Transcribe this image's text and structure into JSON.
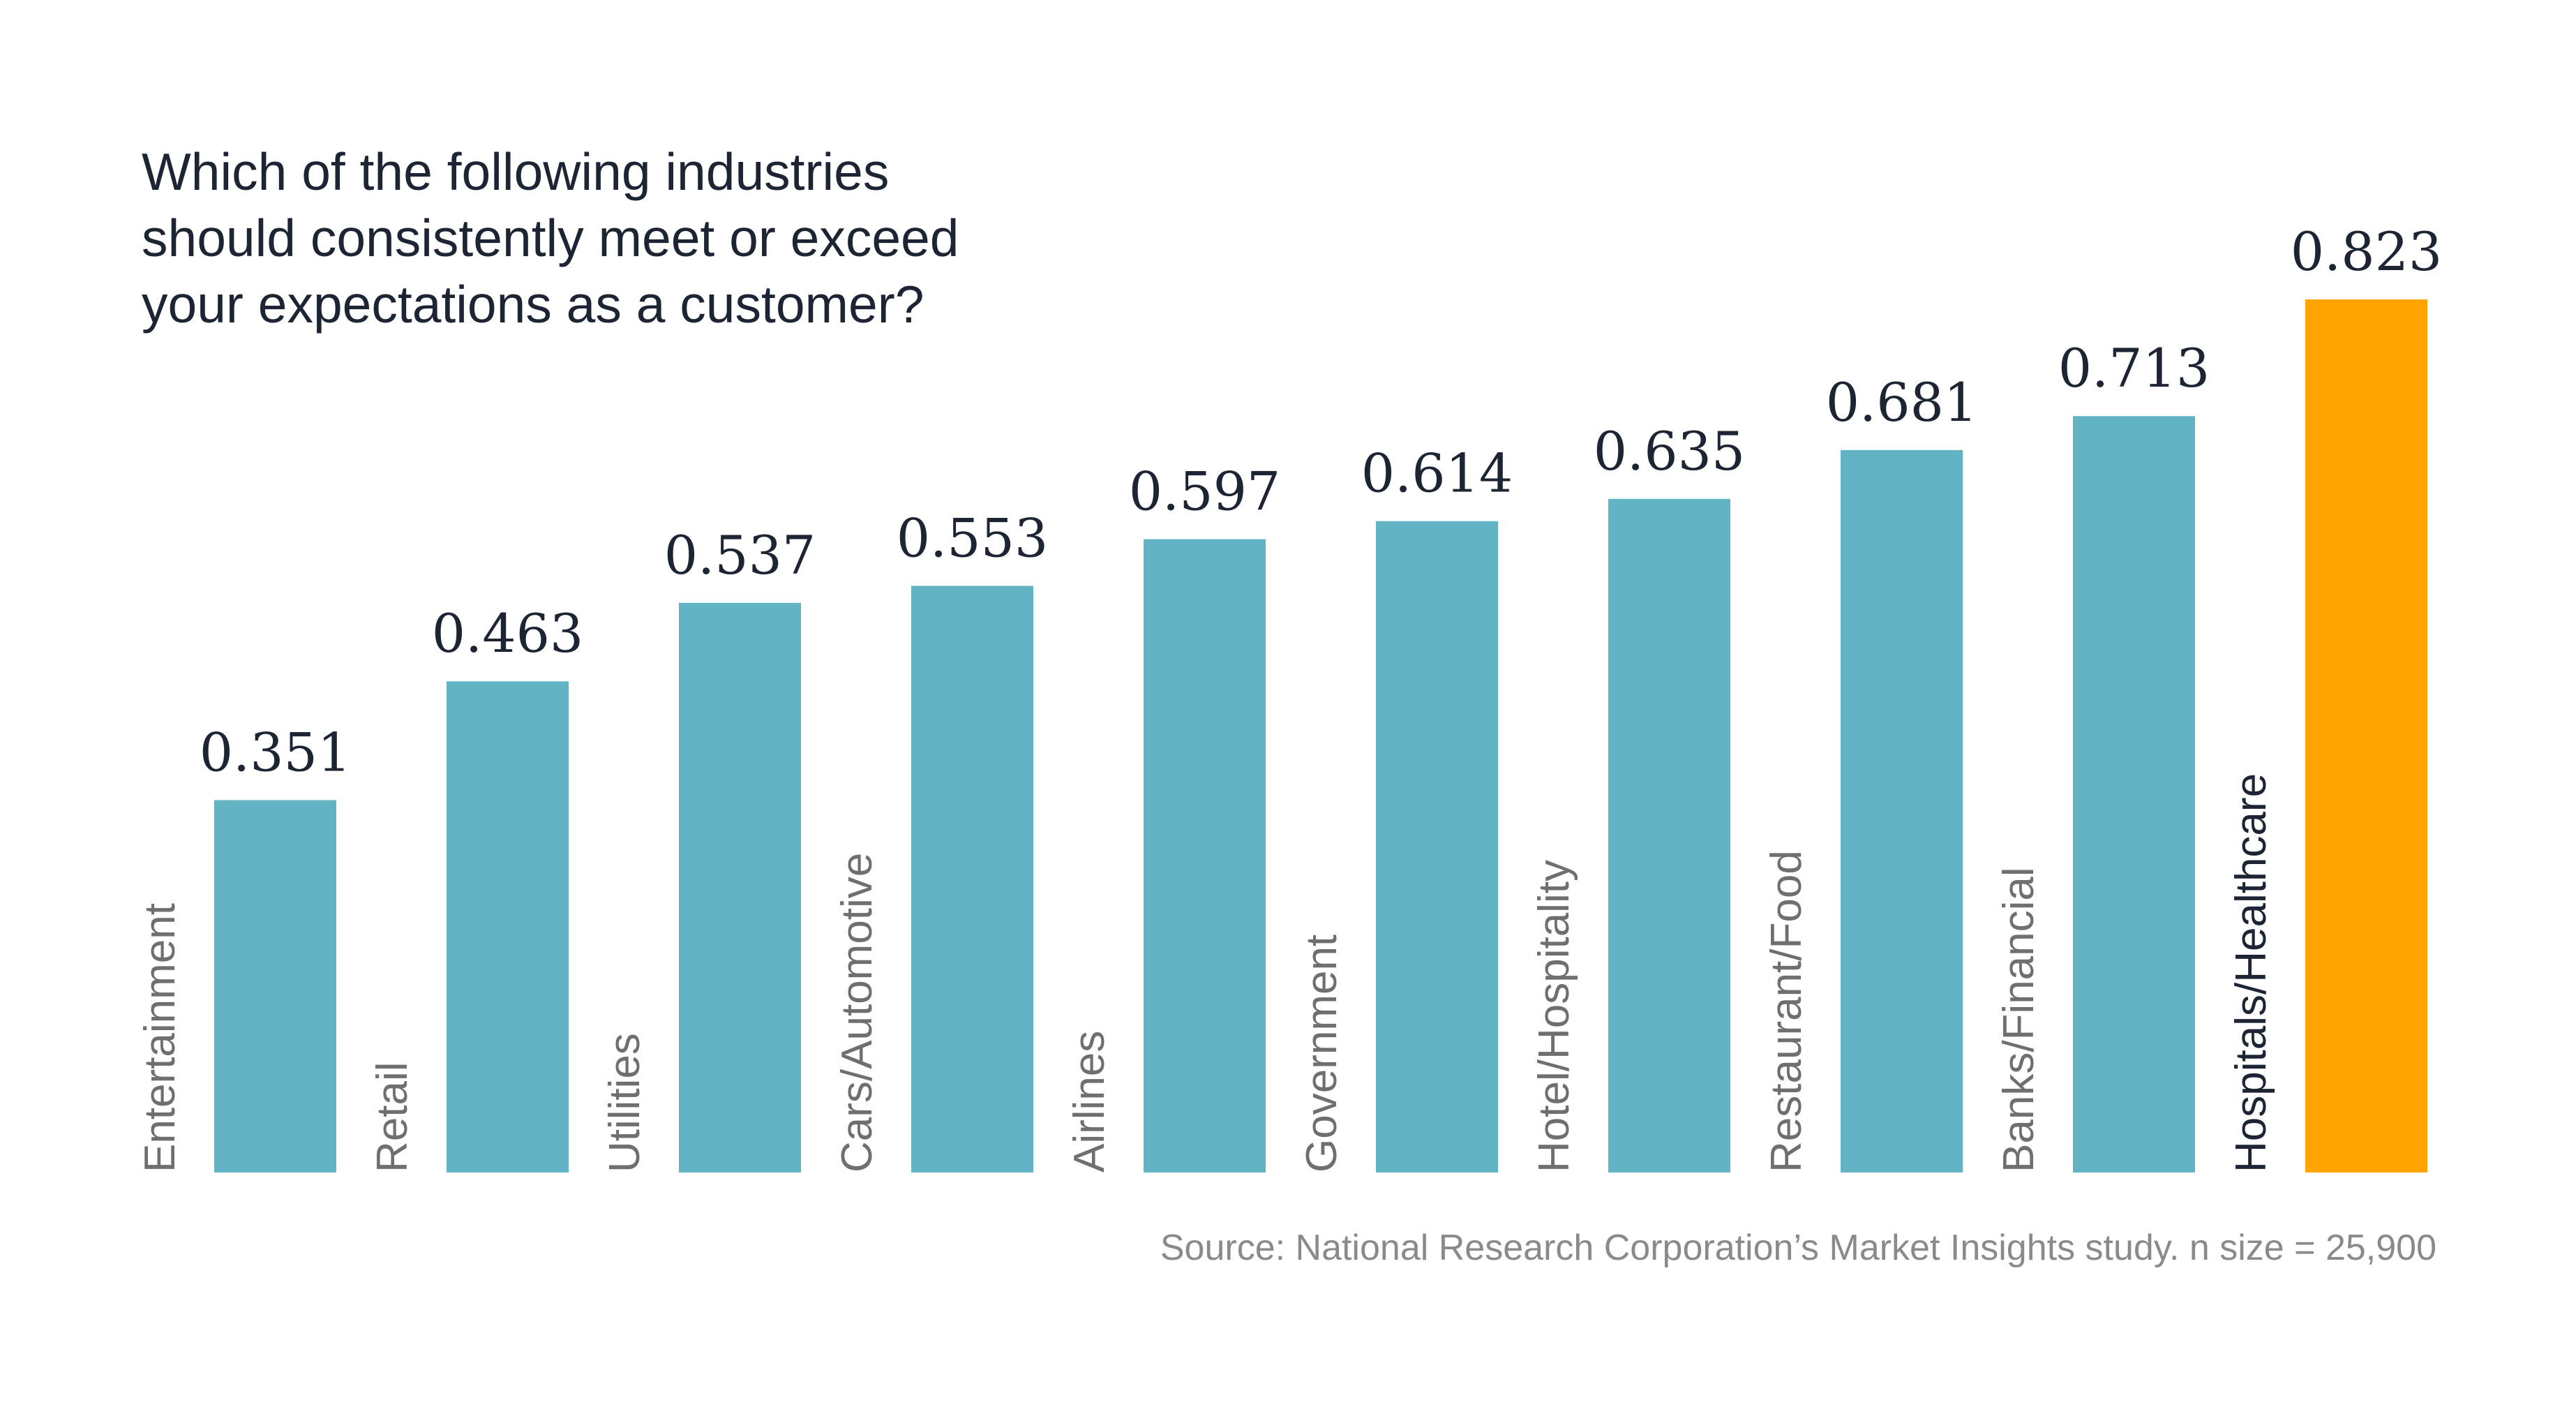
{
  "title_lines": [
    "Which of the following industries",
    "should consistently meet or exceed",
    "your expectations as a customer?"
  ],
  "source": "Source: National Research Corporation’s Market Insights study. n size = 25,900",
  "colors": {
    "bar": "#62b4c4",
    "highlight": "#ffa400"
  },
  "chart_data": {
    "type": "bar",
    "title": "Which of the following industries should consistently meet or exceed your expectations as a customer?",
    "categories": [
      "Entertainment",
      "Retail",
      "Utilities",
      "Cars/Automotive",
      "Airlines",
      "Government",
      "Hotel/Hospitality",
      "Restaurant/Food",
      "Banks/Financial",
      "Hospitals/Healthcare"
    ],
    "values": [
      0.351,
      0.463,
      0.537,
      0.553,
      0.597,
      0.614,
      0.635,
      0.681,
      0.713,
      0.823
    ],
    "value_labels": [
      "0.351",
      "0.463",
      "0.537",
      "0.553",
      "0.597",
      "0.614",
      "0.635",
      "0.681",
      "0.713",
      "0.823"
    ],
    "highlight_category": "Hospitals/Healthcare",
    "xlabel": "",
    "ylabel": "",
    "grid": false,
    "legend": "none"
  }
}
